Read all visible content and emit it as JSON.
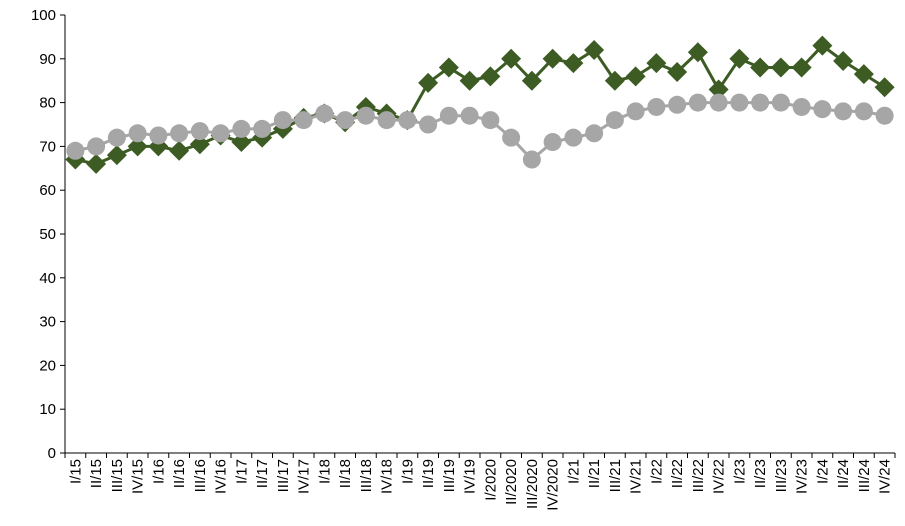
{
  "chart_data": {
    "type": "line",
    "categories": [
      "I/15",
      "II/15",
      "III/15",
      "IV/15",
      "I/16",
      "II/16",
      "III/16",
      "IV/16",
      "I/17",
      "II/17",
      "III/17",
      "IV/17",
      "I/18",
      "II/18",
      "III/18",
      "IV/18",
      "I/19",
      "II/19",
      "III/19",
      "IV/19",
      "I/2020",
      "II/2020",
      "III/2020",
      "IV/2020",
      "I/21",
      "II/21",
      "III/21",
      "IV/21",
      "I/22",
      "II/22",
      "III/22",
      "IV/22",
      "I/23",
      "II/23",
      "III/23",
      "IV/23",
      "I/24",
      "II/24",
      "III/24",
      "IV/24"
    ],
    "series": [
      {
        "color": "#3d5c23",
        "marker": "diamond",
        "values": [
          67,
          66,
          68,
          70,
          70,
          69,
          70.5,
          72.5,
          71,
          72,
          74,
          76.5,
          77.5,
          75.5,
          79,
          77.5,
          76,
          84.5,
          88,
          85,
          86,
          90,
          85,
          90,
          89,
          92,
          85,
          86,
          89,
          87,
          91.5,
          83,
          90,
          88,
          88,
          88,
          93,
          89.5,
          86.5,
          83.5
        ]
      },
      {
        "color": "#a6a6a6",
        "marker": "circle",
        "values": [
          69,
          70,
          72,
          73,
          72.5,
          73,
          73.5,
          73,
          74,
          74,
          76,
          76,
          77.5,
          76,
          77,
          76,
          76,
          75,
          77,
          77,
          76,
          72,
          67,
          71,
          72,
          73,
          76,
          78,
          79,
          79.5,
          80,
          80,
          80,
          80,
          80,
          79,
          78.5,
          78,
          78,
          77
        ]
      }
    ],
    "ylim": [
      0,
      100
    ],
    "yticks": [
      0,
      10,
      20,
      30,
      40,
      50,
      60,
      70,
      80,
      90,
      100
    ],
    "grid": false
  }
}
